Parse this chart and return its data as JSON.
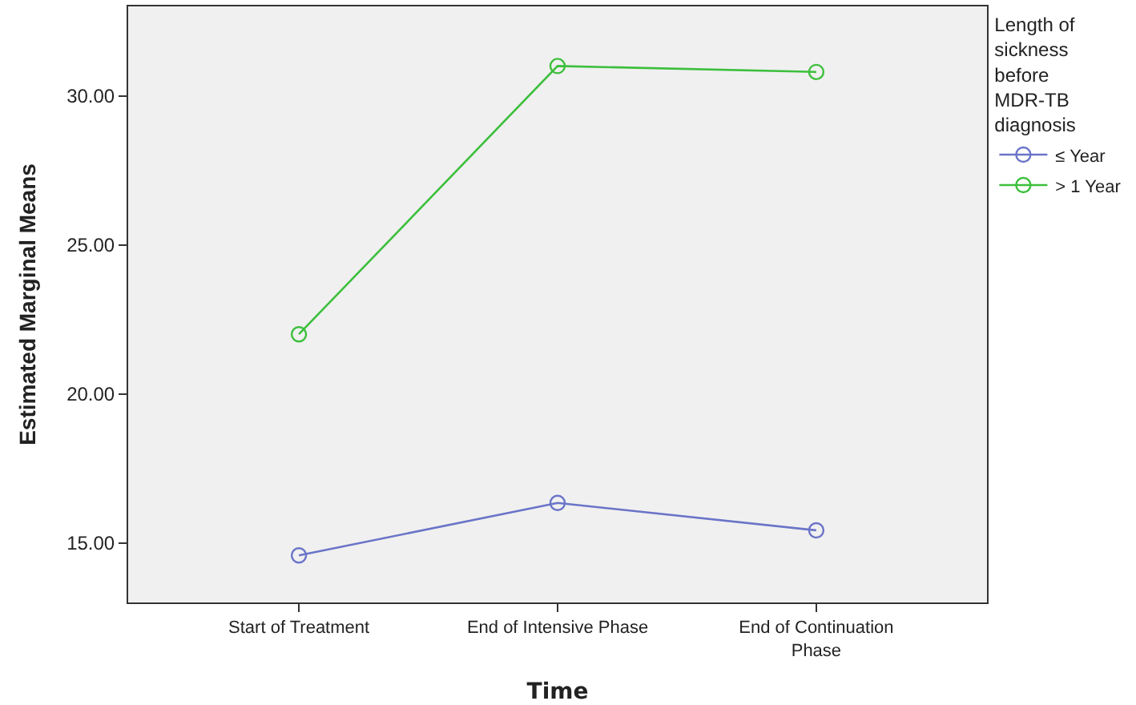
{
  "chart_data": {
    "type": "line",
    "xlabel": "Time",
    "ylabel": "Estimated Marginal Means",
    "legend_title": "Length of\nsickness\nbefore\nMDR-TB\ndiagnosis",
    "categories": [
      "Start of Treatment",
      "End of Intensive Phase",
      "End of Continuation\nPhase"
    ],
    "series": [
      {
        "name": "≤ Year",
        "color": "#6a74c8",
        "values": [
          14.58,
          16.34,
          15.42
        ]
      },
      {
        "name": "> 1 Year",
        "color": "#3cbf3c",
        "values": [
          22.0,
          31.0,
          30.8
        ]
      }
    ],
    "ylim": [
      13,
      33
    ],
    "yticks": [
      {
        "value": 15,
        "label": "15.00"
      },
      {
        "value": 20,
        "label": "20.00"
      },
      {
        "value": 25,
        "label": "25.00"
      },
      {
        "value": 30,
        "label": "30.00"
      }
    ],
    "grid": false,
    "legend": "top right",
    "marker": "circle",
    "line_style": "solid"
  }
}
